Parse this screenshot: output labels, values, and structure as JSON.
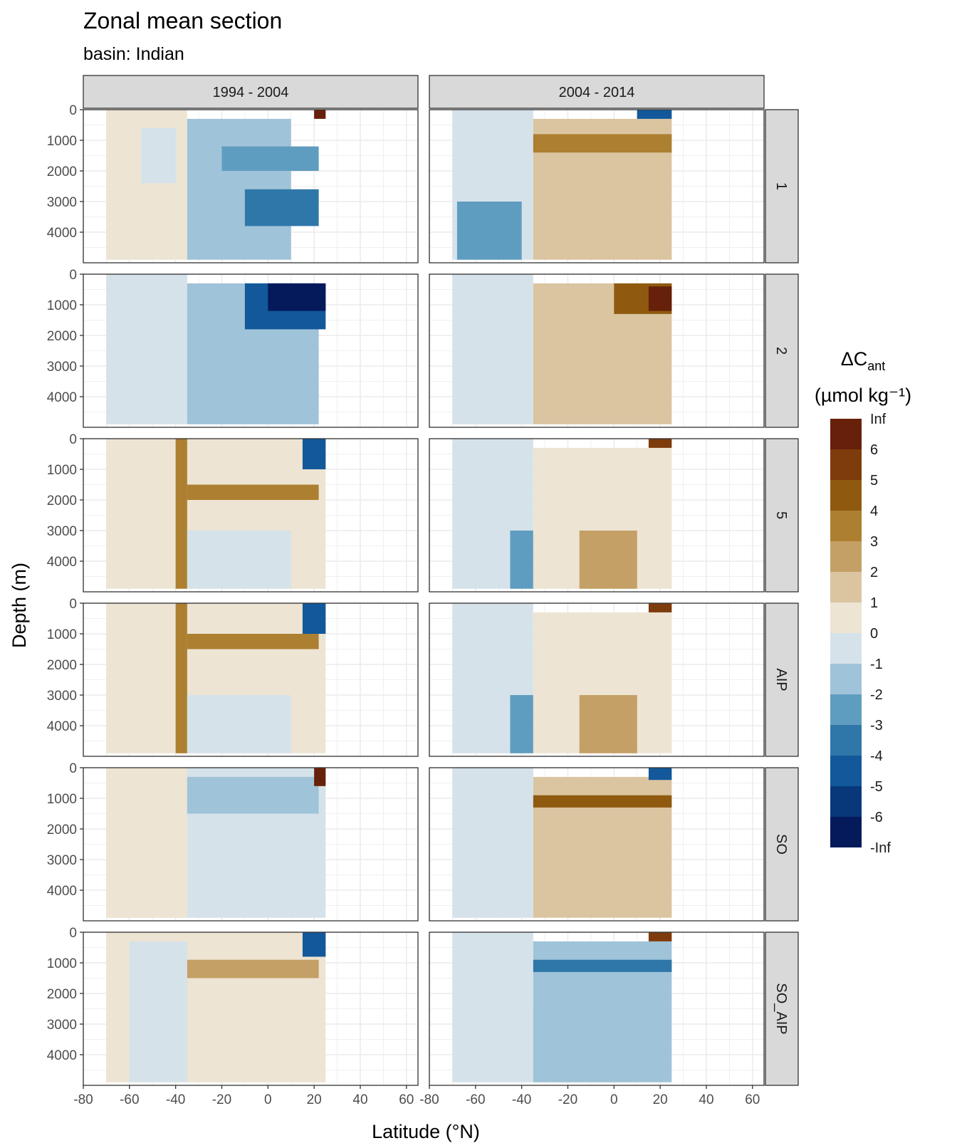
{
  "title": "Zonal mean section",
  "subtitle": "basin: Indian",
  "chart_data": {
    "type": "heatmap",
    "title": "Zonal mean section",
    "subtitle": "basin: Indian",
    "xlabel": "Latitude (°N)",
    "ylabel": "Depth (m)",
    "xlim": [
      -80,
      65
    ],
    "ylim": [
      0,
      5000
    ],
    "y_reversed": true,
    "x_ticks": [
      -80,
      -60,
      -40,
      -20,
      0,
      20,
      40,
      60
    ],
    "y_ticks": [
      0,
      1000,
      2000,
      3000,
      4000
    ],
    "grid": true,
    "column_facets": [
      "1994 - 2004",
      "2004 - 2014"
    ],
    "row_facets": [
      "1",
      "2",
      "5",
      "AIP",
      "SO",
      "SO_AIP"
    ],
    "data_lat_range": [
      -70,
      25
    ],
    "legend": {
      "title_main": "ΔC",
      "title_sub": "ant",
      "units": "(µmol kg⁻¹)",
      "placement": "right",
      "labels": [
        "Inf",
        "6",
        "5",
        "4",
        "3",
        "2",
        "1",
        "0",
        "-1",
        "-2",
        "-3",
        "-4",
        "-5",
        "-6",
        "-Inf"
      ],
      "bins": [
        "6 to Inf",
        "5 to 6",
        "4 to 5",
        "3 to 4",
        "2 to 3",
        "1 to 2",
        "0 to 1",
        "-1 to 0",
        "-2 to -1",
        "-3 to -2",
        "-4 to -3",
        "-5 to -4",
        "-6 to -5",
        "-Inf to -6"
      ],
      "colors": [
        "#67200a",
        "#7e3b0c",
        "#8f5a10",
        "#ad7f30",
        "#c4a066",
        "#dac5a0",
        "#ede4d3",
        "#d6e2ea",
        "#9fc3d8",
        "#5f9dc0",
        "#2f77a9",
        "#12589a",
        "#08387a",
        "#041a5a"
      ]
    },
    "panels": [
      {
        "period": "1994 - 2004",
        "row": "1",
        "fields": [
          {
            "lat": [
              -70,
              -35
            ],
            "depth": [
              0,
              4900
            ],
            "value_bin": "0 to 1"
          },
          {
            "lat": [
              -55,
              -40
            ],
            "depth": [
              600,
              2400
            ],
            "value_bin": "-1 to 0"
          },
          {
            "lat": [
              -35,
              10
            ],
            "depth": [
              300,
              4900
            ],
            "value_bin": "-2 to -1"
          },
          {
            "lat": [
              -20,
              22
            ],
            "depth": [
              1200,
              2000
            ],
            "value_bin": "-3 to -2"
          },
          {
            "lat": [
              -10,
              22
            ],
            "depth": [
              2600,
              3800
            ],
            "value_bin": "-4 to -3"
          },
          {
            "lat": [
              20,
              25
            ],
            "depth": [
              0,
              300
            ],
            "value_bin": "6 to Inf"
          }
        ]
      },
      {
        "period": "2004 - 2014",
        "row": "1",
        "fields": [
          {
            "lat": [
              -70,
              -35
            ],
            "depth": [
              0,
              4900
            ],
            "value_bin": "-1 to 0"
          },
          {
            "lat": [
              -68,
              -40
            ],
            "depth": [
              3000,
              4900
            ],
            "value_bin": "-3 to -2"
          },
          {
            "lat": [
              -35,
              25
            ],
            "depth": [
              300,
              4900
            ],
            "value_bin": "1 to 2"
          },
          {
            "lat": [
              -35,
              25
            ],
            "depth": [
              800,
              1400
            ],
            "value_bin": "3 to 4"
          },
          {
            "lat": [
              10,
              25
            ],
            "depth": [
              0,
              300
            ],
            "value_bin": "-5 to -4"
          }
        ]
      },
      {
        "period": "1994 - 2004",
        "row": "2",
        "fields": [
          {
            "lat": [
              -70,
              -35
            ],
            "depth": [
              0,
              4900
            ],
            "value_bin": "-1 to 0"
          },
          {
            "lat": [
              -35,
              22
            ],
            "depth": [
              300,
              4900
            ],
            "value_bin": "-2 to -1"
          },
          {
            "lat": [
              -10,
              25
            ],
            "depth": [
              300,
              1800
            ],
            "value_bin": "-5 to -4"
          },
          {
            "lat": [
              0,
              25
            ],
            "depth": [
              300,
              1200
            ],
            "value_bin": "-Inf to -6"
          }
        ]
      },
      {
        "period": "2004 - 2014",
        "row": "2",
        "fields": [
          {
            "lat": [
              -70,
              -35
            ],
            "depth": [
              0,
              4900
            ],
            "value_bin": "-1 to 0"
          },
          {
            "lat": [
              -35,
              25
            ],
            "depth": [
              300,
              4900
            ],
            "value_bin": "1 to 2"
          },
          {
            "lat": [
              0,
              25
            ],
            "depth": [
              300,
              1300
            ],
            "value_bin": "4 to 5"
          },
          {
            "lat": [
              15,
              25
            ],
            "depth": [
              400,
              1200
            ],
            "value_bin": "6 to Inf"
          }
        ]
      },
      {
        "period": "1994 - 2004",
        "row": "5",
        "fields": [
          {
            "lat": [
              -70,
              25
            ],
            "depth": [
              0,
              4900
            ],
            "value_bin": "0 to 1"
          },
          {
            "lat": [
              -40,
              -35
            ],
            "depth": [
              0,
              4900
            ],
            "value_bin": "3 to 4"
          },
          {
            "lat": [
              -35,
              22
            ],
            "depth": [
              1500,
              2000
            ],
            "value_bin": "3 to 4"
          },
          {
            "lat": [
              -35,
              10
            ],
            "depth": [
              3000,
              4900
            ],
            "value_bin": "-1 to 0"
          },
          {
            "lat": [
              15,
              25
            ],
            "depth": [
              0,
              1000
            ],
            "value_bin": "-5 to -4"
          }
        ]
      },
      {
        "period": "2004 - 2014",
        "row": "5",
        "fields": [
          {
            "lat": [
              -70,
              -35
            ],
            "depth": [
              0,
              4900
            ],
            "value_bin": "-1 to 0"
          },
          {
            "lat": [
              -45,
              -35
            ],
            "depth": [
              3000,
              4900
            ],
            "value_bin": "-3 to -2"
          },
          {
            "lat": [
              -35,
              25
            ],
            "depth": [
              300,
              4900
            ],
            "value_bin": "0 to 1"
          },
          {
            "lat": [
              -15,
              10
            ],
            "depth": [
              3000,
              4900
            ],
            "value_bin": "2 to 3"
          },
          {
            "lat": [
              15,
              25
            ],
            "depth": [
              0,
              300
            ],
            "value_bin": "5 to 6"
          }
        ]
      },
      {
        "period": "1994 - 2004",
        "row": "AIP",
        "fields": [
          {
            "lat": [
              -70,
              25
            ],
            "depth": [
              0,
              4900
            ],
            "value_bin": "0 to 1"
          },
          {
            "lat": [
              -40,
              -35
            ],
            "depth": [
              0,
              4900
            ],
            "value_bin": "3 to 4"
          },
          {
            "lat": [
              -35,
              22
            ],
            "depth": [
              1000,
              1500
            ],
            "value_bin": "3 to 4"
          },
          {
            "lat": [
              -35,
              10
            ],
            "depth": [
              3000,
              4900
            ],
            "value_bin": "-1 to 0"
          },
          {
            "lat": [
              15,
              25
            ],
            "depth": [
              0,
              1000
            ],
            "value_bin": "-5 to -4"
          }
        ]
      },
      {
        "period": "2004 - 2014",
        "row": "AIP",
        "fields": [
          {
            "lat": [
              -70,
              -35
            ],
            "depth": [
              0,
              4900
            ],
            "value_bin": "-1 to 0"
          },
          {
            "lat": [
              -45,
              -35
            ],
            "depth": [
              3000,
              4900
            ],
            "value_bin": "-3 to -2"
          },
          {
            "lat": [
              -35,
              25
            ],
            "depth": [
              300,
              4900
            ],
            "value_bin": "0 to 1"
          },
          {
            "lat": [
              -15,
              10
            ],
            "depth": [
              3000,
              4900
            ],
            "value_bin": "2 to 3"
          },
          {
            "lat": [
              15,
              25
            ],
            "depth": [
              0,
              300
            ],
            "value_bin": "5 to 6"
          }
        ]
      },
      {
        "period": "1994 - 2004",
        "row": "SO",
        "fields": [
          {
            "lat": [
              -70,
              25
            ],
            "depth": [
              0,
              4900
            ],
            "value_bin": "-1 to 0"
          },
          {
            "lat": [
              -70,
              -35
            ],
            "depth": [
              0,
              4900
            ],
            "value_bin": "0 to 1"
          },
          {
            "lat": [
              -35,
              22
            ],
            "depth": [
              300,
              1500
            ],
            "value_bin": "-2 to -1"
          },
          {
            "lat": [
              20,
              25
            ],
            "depth": [
              0,
              600
            ],
            "value_bin": "6 to Inf"
          }
        ]
      },
      {
        "period": "2004 - 2014",
        "row": "SO",
        "fields": [
          {
            "lat": [
              -70,
              -35
            ],
            "depth": [
              0,
              4900
            ],
            "value_bin": "-1 to 0"
          },
          {
            "lat": [
              -35,
              25
            ],
            "depth": [
              300,
              4900
            ],
            "value_bin": "1 to 2"
          },
          {
            "lat": [
              -35,
              25
            ],
            "depth": [
              900,
              1300
            ],
            "value_bin": "4 to 5"
          },
          {
            "lat": [
              15,
              25
            ],
            "depth": [
              0,
              400
            ],
            "value_bin": "-5 to -4"
          }
        ]
      },
      {
        "period": "1994 - 2004",
        "row": "SO_AIP",
        "fields": [
          {
            "lat": [
              -70,
              25
            ],
            "depth": [
              0,
              4900
            ],
            "value_bin": "0 to 1"
          },
          {
            "lat": [
              -60,
              -35
            ],
            "depth": [
              300,
              4900
            ],
            "value_bin": "-1 to 0"
          },
          {
            "lat": [
              -35,
              22
            ],
            "depth": [
              900,
              1500
            ],
            "value_bin": "2 to 3"
          },
          {
            "lat": [
              15,
              25
            ],
            "depth": [
              0,
              800
            ],
            "value_bin": "-5 to -4"
          }
        ]
      },
      {
        "period": "2004 - 2014",
        "row": "SO_AIP",
        "fields": [
          {
            "lat": [
              -70,
              -35
            ],
            "depth": [
              0,
              4900
            ],
            "value_bin": "-1 to 0"
          },
          {
            "lat": [
              -35,
              25
            ],
            "depth": [
              300,
              4900
            ],
            "value_bin": "-2 to -1"
          },
          {
            "lat": [
              -35,
              25
            ],
            "depth": [
              900,
              1300
            ],
            "value_bin": "-4 to -3"
          },
          {
            "lat": [
              -35,
              10
            ],
            "depth": [
              2500,
              4900
            ],
            "value_bin": "-2 to -1"
          },
          {
            "lat": [
              15,
              25
            ],
            "depth": [
              0,
              300
            ],
            "value_bin": "5 to 6"
          }
        ]
      }
    ]
  }
}
